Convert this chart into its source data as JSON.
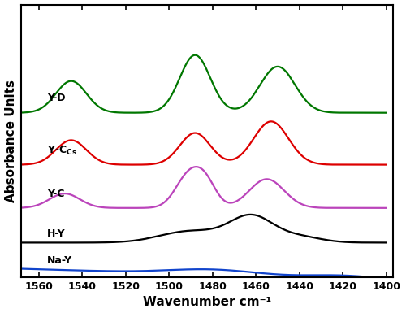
{
  "x_min": 1400,
  "x_max": 1570,
  "x_ticks": [
    1560,
    1540,
    1520,
    1500,
    1480,
    1460,
    1440,
    1420,
    1400
  ],
  "xlabel": "Wavenumber cm⁻¹",
  "ylabel": "Absorbance Units",
  "colors": [
    "#1144cc",
    "#000000",
    "#bb44bb",
    "#dd0000",
    "#007700"
  ],
  "labels": [
    "Na-Y",
    "H-Y",
    "Y-C",
    "Y-C$_{\\mathregular{Cs}}$",
    "Y-D"
  ],
  "offsets": [
    0.0,
    0.18,
    0.42,
    0.72,
    1.08
  ],
  "figsize": [
    5.0,
    3.85
  ],
  "dpi": 100
}
